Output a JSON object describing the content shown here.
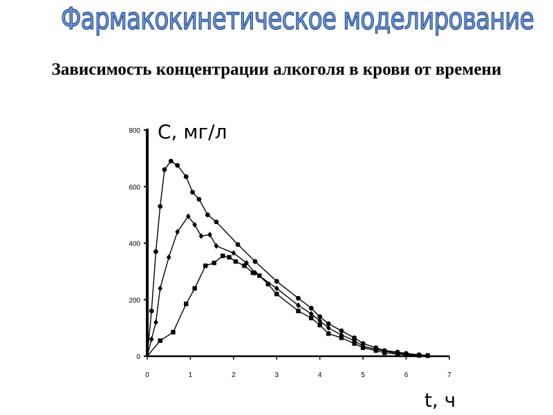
{
  "slide": {
    "title": "Фармакокинетическое моделирование"
  },
  "chart_data": {
    "type": "line",
    "title": "Зависимость концентрации алкоголя в крови от времени",
    "xlabel": "t, ч",
    "ylabel": "C, мг/л",
    "xlim": [
      0,
      7
    ],
    "ylim": [
      0,
      800
    ],
    "xticks": [
      0,
      1,
      2,
      3,
      4,
      5,
      6,
      7
    ],
    "yticks": [
      0,
      200,
      400,
      600,
      800
    ],
    "grid": false,
    "legend": "none",
    "series": [
      {
        "marker": "circle",
        "points": [
          [
            0,
            0
          ],
          [
            0.1,
            160
          ],
          [
            0.2,
            370
          ],
          [
            0.3,
            530
          ],
          [
            0.4,
            660
          ],
          [
            0.55,
            690
          ],
          [
            0.7,
            675
          ],
          [
            0.9,
            635
          ],
          [
            1.05,
            580
          ],
          [
            1.2,
            555
          ],
          [
            1.4,
            500
          ],
          [
            1.6,
            475
          ],
          [
            2.1,
            395
          ],
          [
            2.5,
            335
          ],
          [
            3.0,
            265
          ],
          [
            3.5,
            205
          ],
          [
            3.8,
            170
          ],
          [
            4.0,
            140
          ],
          [
            4.2,
            115
          ],
          [
            4.5,
            90
          ],
          [
            4.8,
            65
          ],
          [
            5.0,
            45
          ],
          [
            5.3,
            30
          ],
          [
            5.5,
            20
          ],
          [
            5.8,
            15
          ],
          [
            6.0,
            10
          ],
          [
            6.3,
            5
          ],
          [
            6.5,
            3
          ]
        ]
      },
      {
        "marker": "diamond",
        "points": [
          [
            0,
            0
          ],
          [
            0.1,
            60
          ],
          [
            0.2,
            120
          ],
          [
            0.3,
            240
          ],
          [
            0.5,
            350
          ],
          [
            0.7,
            440
          ],
          [
            0.95,
            495
          ],
          [
            1.1,
            465
          ],
          [
            1.25,
            425
          ],
          [
            1.45,
            430
          ],
          [
            1.6,
            390
          ],
          [
            2.0,
            365
          ],
          [
            2.3,
            330
          ],
          [
            2.5,
            295
          ],
          [
            3.0,
            240
          ],
          [
            3.5,
            180
          ],
          [
            3.8,
            150
          ],
          [
            4.0,
            125
          ],
          [
            4.2,
            100
          ],
          [
            4.5,
            75
          ],
          [
            4.8,
            55
          ],
          [
            5.0,
            35
          ],
          [
            5.3,
            25
          ],
          [
            5.5,
            18
          ],
          [
            5.8,
            10
          ],
          [
            6.0,
            7
          ],
          [
            6.3,
            3
          ],
          [
            6.5,
            2
          ]
        ]
      },
      {
        "marker": "square",
        "points": [
          [
            0,
            0
          ],
          [
            0.3,
            55
          ],
          [
            0.6,
            85
          ],
          [
            0.9,
            185
          ],
          [
            1.1,
            240
          ],
          [
            1.35,
            320
          ],
          [
            1.55,
            330
          ],
          [
            1.75,
            355
          ],
          [
            1.9,
            350
          ],
          [
            2.05,
            335
          ],
          [
            2.25,
            320
          ],
          [
            2.45,
            295
          ],
          [
            2.6,
            285
          ],
          [
            2.8,
            255
          ],
          [
            3.0,
            220
          ],
          [
            3.5,
            160
          ],
          [
            3.8,
            135
          ],
          [
            4.0,
            110
          ],
          [
            4.2,
            80
          ],
          [
            4.5,
            65
          ],
          [
            4.8,
            45
          ],
          [
            5.0,
            30
          ],
          [
            5.3,
            20
          ],
          [
            5.5,
            12
          ],
          [
            5.8,
            8
          ],
          [
            6.0,
            5
          ],
          [
            6.3,
            3
          ],
          [
            6.5,
            2
          ]
        ]
      }
    ]
  }
}
